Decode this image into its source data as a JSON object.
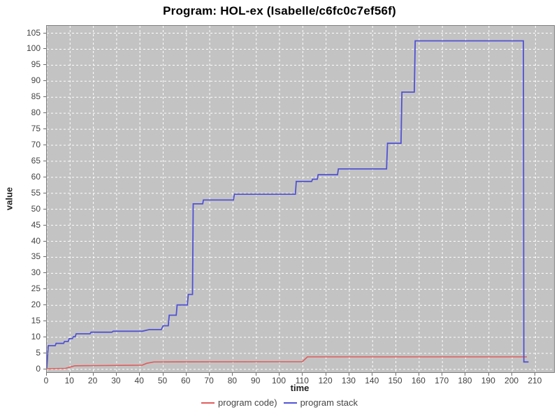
{
  "chart_data": {
    "type": "line",
    "title": "Program: HOL-ex (Isabelle/c6fc0c7ef56f)",
    "xlabel": "time",
    "ylabel": "value",
    "xlim": [
      0,
      218
    ],
    "ylim": [
      -0.9,
      107.3
    ],
    "xticks": [
      0,
      10,
      20,
      30,
      40,
      50,
      60,
      70,
      80,
      90,
      100,
      110,
      120,
      130,
      140,
      150,
      160,
      170,
      180,
      190,
      200,
      210
    ],
    "yticks": [
      0,
      5,
      10,
      15,
      20,
      25,
      30,
      35,
      40,
      45,
      50,
      55,
      60,
      65,
      70,
      75,
      80,
      85,
      90,
      95,
      100,
      105
    ],
    "grid": true,
    "legend_position": "bottom",
    "colors": {
      "plot_background": "#c3c3c3",
      "grid_line": "#ffffff",
      "plot_border": "#7e7e7e",
      "tick_label": "#434343",
      "series_code": "#e05c5c",
      "series_stack": "#5152d4"
    },
    "series": [
      {
        "name": "program code)",
        "color": "#e05c5c",
        "stroke_width": 1.6,
        "points": [
          [
            0,
            0.2
          ],
          [
            8,
            0.3
          ],
          [
            10,
            0.7
          ],
          [
            12,
            1.1
          ],
          [
            41,
            1.3
          ],
          [
            43,
            1.9
          ],
          [
            46,
            2.3
          ],
          [
            109.8,
            2.4
          ],
          [
            112,
            3.9
          ],
          [
            206.3,
            3.9
          ]
        ]
      },
      {
        "name": "program stack",
        "color": "#5152d4",
        "stroke_width": 1.8,
        "points": [
          [
            0,
            0.4
          ],
          [
            0.6,
            7.4
          ],
          [
            3.6,
            7.4
          ],
          [
            4,
            8.1
          ],
          [
            7.2,
            8.1
          ],
          [
            7.6,
            8.7
          ],
          [
            9.2,
            8.7
          ],
          [
            9.6,
            9.6
          ],
          [
            11,
            9.6
          ],
          [
            11.4,
            10.2
          ],
          [
            12.2,
            10.2
          ],
          [
            12.6,
            11.1
          ],
          [
            18.6,
            11.1
          ],
          [
            19,
            11.6
          ],
          [
            28,
            11.6
          ],
          [
            28.5,
            11.9
          ],
          [
            41,
            11.9
          ],
          [
            44,
            12.4
          ],
          [
            49.2,
            12.4
          ],
          [
            50,
            13.6
          ],
          [
            52.2,
            13.6
          ],
          [
            52.6,
            16.9
          ],
          [
            55.6,
            16.9
          ],
          [
            56,
            20.1
          ],
          [
            60.4,
            20.1
          ],
          [
            60.8,
            23.4
          ],
          [
            62.6,
            23.4
          ],
          [
            62.9,
            51.7
          ],
          [
            67,
            51.7
          ],
          [
            67.3,
            52.9
          ],
          [
            80.2,
            52.9
          ],
          [
            80.6,
            54.7
          ],
          [
            106.8,
            54.7
          ],
          [
            107.2,
            58.7
          ],
          [
            113.8,
            58.7
          ],
          [
            114.2,
            59.4
          ],
          [
            116.2,
            59.4
          ],
          [
            116.6,
            60.8
          ],
          [
            124.9,
            60.8
          ],
          [
            125.3,
            62.6
          ],
          [
            146,
            62.6
          ],
          [
            146.4,
            70.6
          ],
          [
            152.2,
            70.6
          ],
          [
            152.6,
            86.6
          ],
          [
            157.9,
            86.6
          ],
          [
            158.3,
            102.6
          ],
          [
            204.8,
            102.6
          ],
          [
            205,
            2.3
          ],
          [
            207,
            2.3
          ]
        ]
      }
    ]
  }
}
